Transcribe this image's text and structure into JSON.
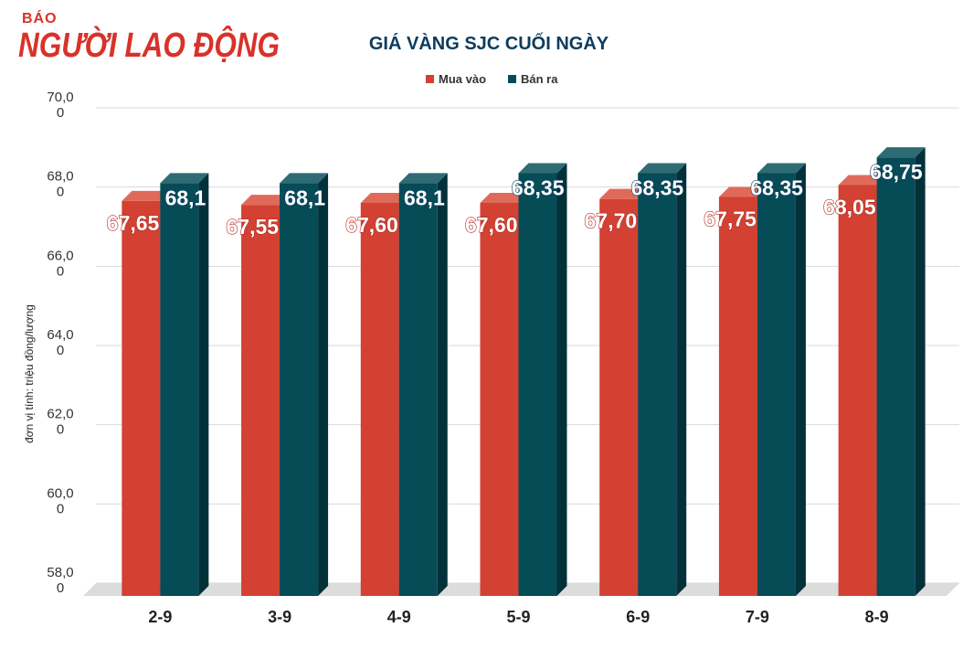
{
  "logo": {
    "small": "BÁO",
    "big": "NGƯỜI LAO ĐỘNG"
  },
  "colors": {
    "mua_vao": "#d24132",
    "mua_vao_side": "#a82e23",
    "mua_vao_top": "#e06a5a",
    "ban_ra": "#064c57",
    "ban_ra_side": "#03313a",
    "ban_ra_top": "#2f6b75",
    "brand": "#d8322a",
    "title": "#0b3c5d"
  },
  "chart_data": {
    "type": "bar",
    "title": "GIÁ VÀNG SJC CUỐI NGÀY",
    "ylabel": "đơn vị tính: triệu đồng/lượng",
    "xlabel": "",
    "ylim": [
      58,
      70
    ],
    "yticks": [
      "70,0\n0",
      "68,0\n0",
      "66,0\n0",
      "64,0\n0",
      "62,0\n0",
      "60,0\n0",
      "58,0\n0"
    ],
    "ytick_values": [
      70,
      68,
      66,
      64,
      62,
      60,
      58
    ],
    "grid": true,
    "legend_position": "top-center",
    "categories": [
      "2-9",
      "3-9",
      "4-9",
      "5-9",
      "6-9",
      "7-9",
      "8-9"
    ],
    "series": [
      {
        "name": "Mua vào",
        "values": [
          67.65,
          67.55,
          67.6,
          67.6,
          67.7,
          67.75,
          68.05
        ],
        "labels": [
          "67,65",
          "67,55",
          "67,60",
          "67,60",
          "67,70",
          "67,75",
          "68,05"
        ]
      },
      {
        "name": "Bán ra",
        "values": [
          68.1,
          68.1,
          68.1,
          68.35,
          68.35,
          68.35,
          68.75
        ],
        "labels": [
          "68,1",
          "68,1",
          "68,1",
          "68,35",
          "68,35",
          "68,35",
          "68,75"
        ]
      }
    ]
  }
}
